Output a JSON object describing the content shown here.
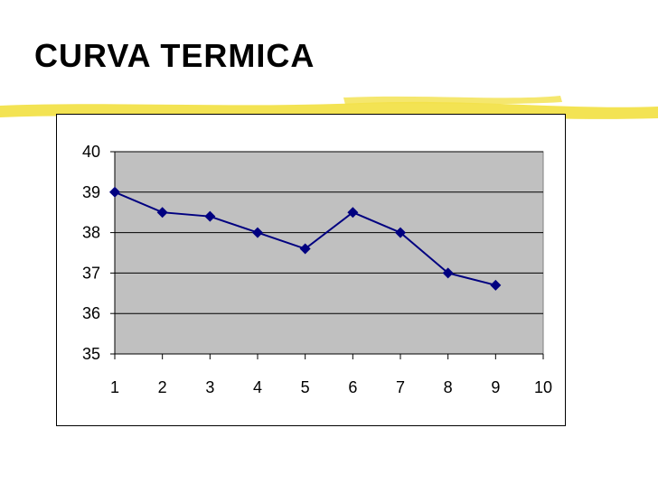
{
  "slide": {
    "title": "CURVA TERMICA"
  },
  "colors": {
    "accent_stripe": "#f2e14a",
    "plot_background": "#c0c0c0",
    "series_line": "#000080",
    "gridline": "#000000"
  },
  "chart_data": {
    "type": "line",
    "title": "",
    "xlabel": "",
    "ylabel": "",
    "x": [
      1,
      2,
      3,
      4,
      5,
      6,
      7,
      8,
      9
    ],
    "x_ticks": [
      1,
      2,
      3,
      4,
      5,
      6,
      7,
      8,
      9,
      10
    ],
    "y_ticks": [
      35,
      36,
      37,
      38,
      39,
      40
    ],
    "xlim": [
      1,
      10
    ],
    "ylim": [
      35,
      40
    ],
    "grid": true,
    "legend": "none",
    "marker": "diamond",
    "series": [
      {
        "values": [
          39,
          38.5,
          38.4,
          38,
          37.6,
          38.5,
          38,
          37,
          36.7
        ]
      }
    ]
  }
}
